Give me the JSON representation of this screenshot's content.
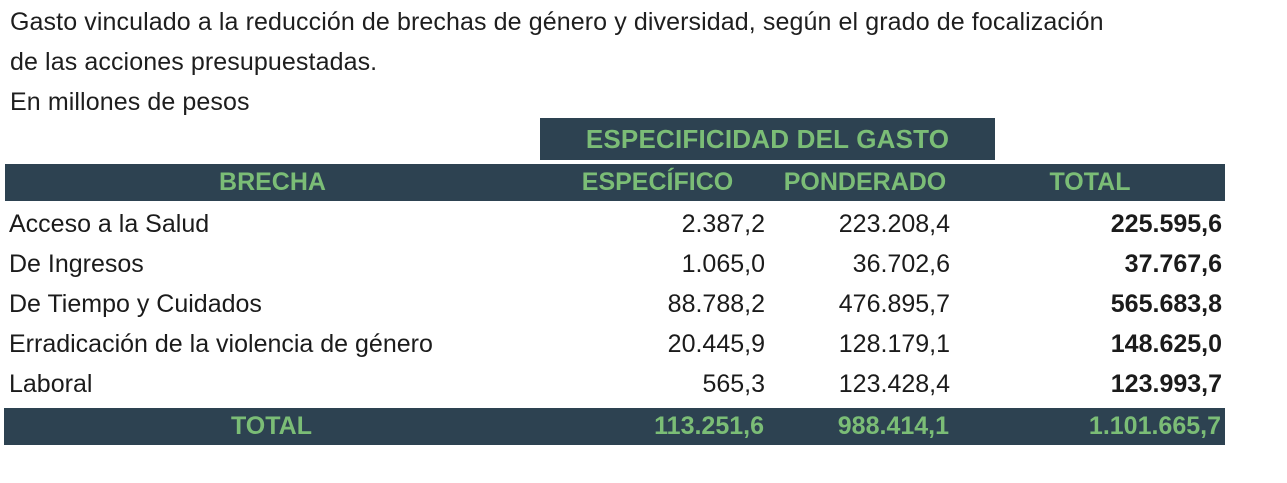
{
  "header": {
    "title_line1": "Gasto vinculado a la reducción de brechas de género y diversidad, según el grado de focalización",
    "title_line2": "de las acciones presupuestadas.",
    "units": "En millones de pesos"
  },
  "table": {
    "banner": "ESPECIFICIDAD DEL GASTO",
    "columns": {
      "brecha": "BRECHA",
      "especifico": "ESPECÍFICO",
      "ponderado": "PONDERADO",
      "total": "TOTAL"
    },
    "rows": [
      {
        "brecha": "Acceso a la Salud",
        "especifico": "2.387,2",
        "ponderado": "223.208,4",
        "total": "225.595,6"
      },
      {
        "brecha": "De Ingresos",
        "especifico": "1.065,0",
        "ponderado": "36.702,6",
        "total": "37.767,6"
      },
      {
        "brecha": "De Tiempo y Cuidados",
        "especifico": "88.788,2",
        "ponderado": "476.895,7",
        "total": "565.683,8"
      },
      {
        "brecha": "Erradicación de la violencia de género",
        "especifico": "20.445,9",
        "ponderado": "128.179,1",
        "total": "148.625,0"
      },
      {
        "brecha": "Laboral",
        "especifico": "565,3",
        "ponderado": "123.428,4",
        "total": "123.993,7"
      }
    ],
    "total_row": {
      "label": "TOTAL",
      "especifico": "113.251,6",
      "ponderado": "988.414,1",
      "total": "1.101.665,7"
    }
  },
  "chart_data": {
    "type": "table",
    "title": "Gasto vinculado a la reducción de brechas de género y diversidad, según el grado de focalización de las acciones presupuestadas.",
    "units": "En millones de pesos",
    "column_group_header": "ESPECIFICIDAD DEL GASTO",
    "columns": [
      "BRECHA",
      "ESPECÍFICO",
      "PONDERADO",
      "TOTAL"
    ],
    "rows": [
      [
        "Acceso a la Salud",
        2387.2,
        223208.4,
        225595.6
      ],
      [
        "De Ingresos",
        1065.0,
        36702.6,
        37767.6
      ],
      [
        "De Tiempo y Cuidados",
        88788.2,
        476895.7,
        565683.8
      ],
      [
        "Erradicación de la violencia de género",
        20445.9,
        128179.1,
        148625.0
      ],
      [
        "Laboral",
        565.3,
        123428.4,
        123993.7
      ]
    ],
    "total_row": [
      "TOTAL",
      113251.6,
      988414.1,
      1101665.7
    ],
    "number_format": "es-AR (miles con punto, decimales con coma)"
  },
  "colors": {
    "header_bg": "#2d4251",
    "accent_green": "#7bbd76",
    "body_text": "#1b1b1b",
    "background": "#ffffff"
  }
}
